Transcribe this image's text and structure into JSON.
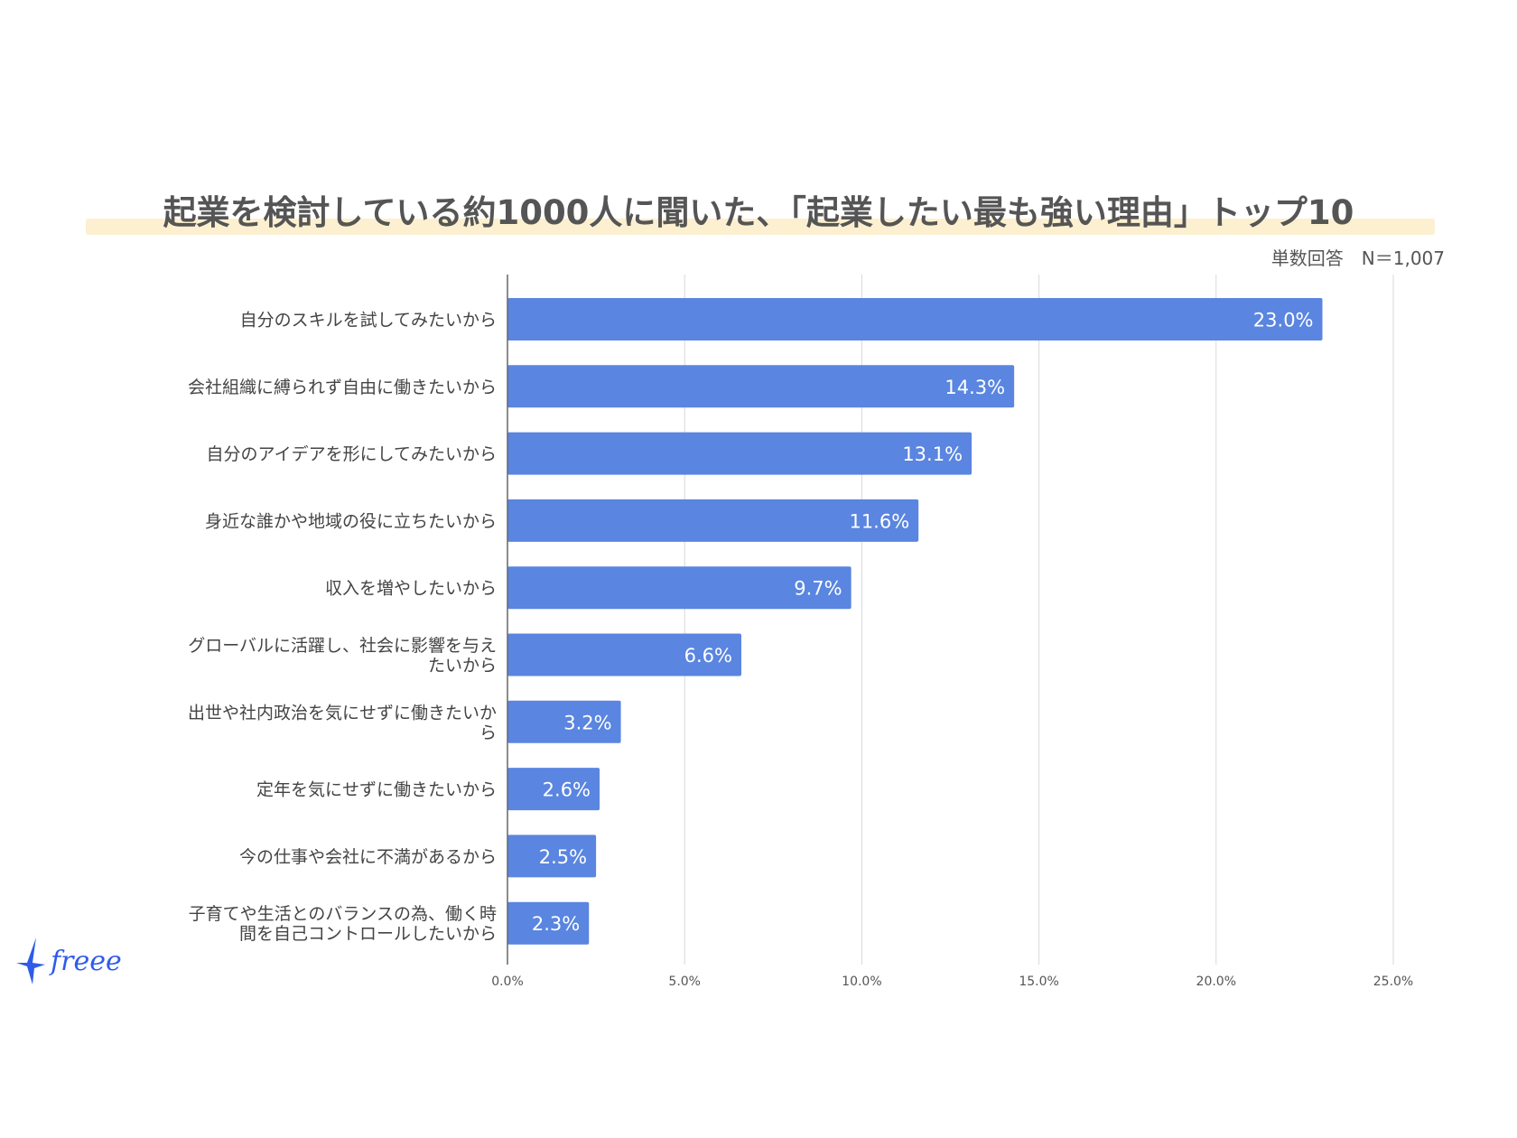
{
  "chart_data": {
    "type": "bar",
    "orientation": "horizontal",
    "title": "起業を検討している約1000人に聞いた、「起業したい最も強い理由」トップ10",
    "subtitle": "単数回答　N＝1,007",
    "categories": [
      "自分のスキルを試してみたいから",
      "会社組織に縛られず自由に働きたいから",
      "自分のアイデアを形にしてみたいから",
      "身近な誰かや地域の役に立ちたいから",
      "収入を増やしたいから",
      "グローバルに活躍し、社会に影響を与えたいから",
      "出世や社内政治を気にせずに働きたいから",
      "定年を気にせずに働きたいから",
      "今の仕事や会社に不満があるから",
      "子育てや生活とのバランスの為、働く時間を自己コントロールしたいから"
    ],
    "category_lines": [
      [
        "自分のスキルを試してみたいから"
      ],
      [
        "会社組織に縛られず自由に働きたいから"
      ],
      [
        "自分のアイデアを形にしてみたいから"
      ],
      [
        "身近な誰かや地域の役に立ちたいから"
      ],
      [
        "収入を増やしたいから"
      ],
      [
        "グローバルに活躍し、社会に影響を与え",
        "たいから"
      ],
      [
        "出世や社内政治を気にせずに働きたいか",
        "ら"
      ],
      [
        "定年を気にせずに働きたいから"
      ],
      [
        "今の仕事や会社に不満があるから"
      ],
      [
        "子育てや生活とのバランスの為、働く時",
        "間を自己コントロールしたいから"
      ]
    ],
    "values": [
      23.0,
      14.3,
      13.1,
      11.6,
      9.7,
      6.6,
      3.2,
      2.6,
      2.5,
      2.3
    ],
    "data_labels": [
      "23.0%",
      "14.3%",
      "13.1%",
      "11.6%",
      "9.7%",
      "6.6%",
      "3.2%",
      "2.6%",
      "2.5%",
      "2.3%"
    ],
    "xlim": [
      0,
      25
    ],
    "xticks": [
      0,
      5,
      10,
      15,
      20,
      25
    ],
    "xtick_labels": [
      "0.0%",
      "5.0%",
      "10.0%",
      "15.0%",
      "20.0%",
      "25.0%"
    ],
    "grid": true,
    "bar_color": "#5a85e0"
  },
  "logo": {
    "text": "freee",
    "color": "#2f5bea"
  }
}
